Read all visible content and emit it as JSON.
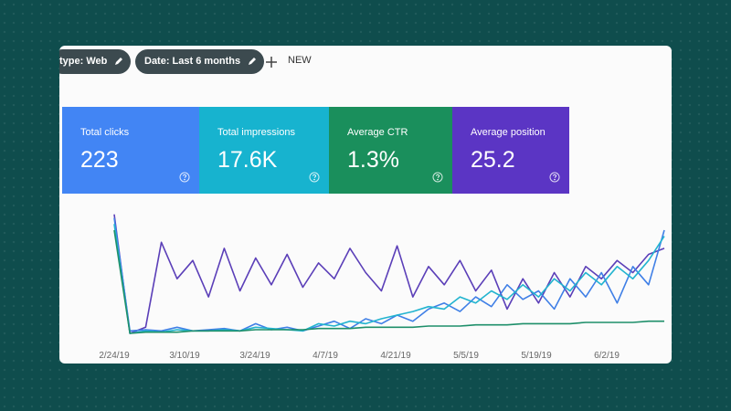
{
  "filters": [
    {
      "label": "type: Web"
    },
    {
      "label": "Date: Last 6 months"
    }
  ],
  "new_button": "NEW",
  "metrics": [
    {
      "label": "Total clicks",
      "value": "223",
      "color": "#4285f4"
    },
    {
      "label": "Total impressions",
      "value": "17.6K",
      "color": "#17b3cf"
    },
    {
      "label": "Average CTR",
      "value": "1.3%",
      "color": "#1a8f5c"
    },
    {
      "label": "Average position",
      "value": "25.2",
      "color": "#5b35c4"
    }
  ],
  "chart": {
    "x_labels": [
      "2/24/19",
      "3/10/19",
      "3/24/19",
      "4/7/19",
      "4/21/19",
      "5/5/19",
      "5/19/19",
      "6/2/19"
    ],
    "series": [
      {
        "color": "#5b3fb8",
        "values": [
          98,
          0,
          5,
          75,
          45,
          60,
          30,
          70,
          35,
          62,
          40,
          65,
          38,
          58,
          45,
          70,
          50,
          35,
          72,
          30,
          55,
          40,
          60,
          35,
          52,
          20,
          45,
          25,
          50,
          30,
          55,
          45,
          60,
          50,
          65,
          70
        ]
      },
      {
        "color": "#3f7fe6",
        "values": [
          95,
          2,
          3,
          2,
          5,
          2,
          3,
          4,
          2,
          8,
          3,
          5,
          2,
          6,
          10,
          4,
          12,
          8,
          15,
          10,
          20,
          25,
          18,
          30,
          22,
          40,
          28,
          35,
          20,
          45,
          30,
          50,
          25,
          55,
          40,
          85
        ]
      },
      {
        "color": "#22b4cf",
        "values": [
          90,
          0,
          2,
          1,
          3,
          2,
          2,
          3,
          2,
          5,
          4,
          3,
          2,
          8,
          6,
          10,
          8,
          12,
          15,
          18,
          22,
          20,
          30,
          25,
          35,
          28,
          40,
          30,
          45,
          35,
          50,
          40,
          55,
          45,
          60,
          80
        ]
      },
      {
        "color": "#1e8f6a",
        "values": [
          85,
          0,
          1,
          1,
          1,
          2,
          2,
          2,
          2,
          3,
          3,
          3,
          3,
          4,
          4,
          4,
          5,
          5,
          5,
          5,
          6,
          6,
          6,
          7,
          7,
          7,
          8,
          8,
          8,
          8,
          9,
          9,
          9,
          9,
          10,
          10
        ]
      }
    ]
  }
}
